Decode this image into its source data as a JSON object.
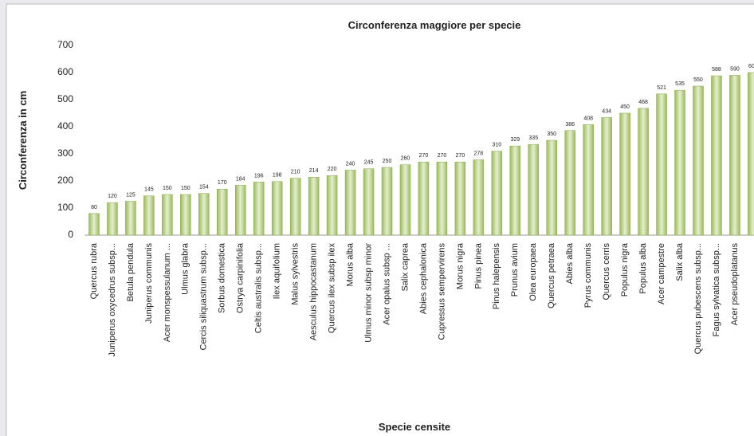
{
  "chart_data": {
    "type": "bar",
    "title": "Circonferenza maggiore per specie",
    "x_label": "Specie censite",
    "y_label": "Circonferenza in cm",
    "categories": [
      "Quercus rubra",
      "Juniperus oxycedrus subsp...",
      "Betula pendula",
      "Juniperus communis",
      "Acer monspessulanum ...",
      "Ulmus glabra",
      "Cercis siliquastrum subsp...",
      "Sorbus domestica",
      "Ostrya carpinifolia",
      "Celtis australis subsp...",
      "Ilex aquifolium",
      "Malus sylvestris",
      "Aesculus hippocastanum",
      "Quercus ilex subsp ilex",
      "Morus alba",
      "Ulmus minor subsp minor",
      "Acer opalus subsp ...",
      "Salix caprea",
      "Abies cephalonica",
      "Cupressus sempervirens",
      "Morus nigra",
      "Pinus pinea",
      "Pinus halepensis",
      "Prunus avium",
      "Olea europaea",
      "Quercus petraea",
      "Abies alba",
      "Pyrus communis",
      "Quercus cerris",
      "Populus nigra",
      "Populus alba",
      "Acer campestre",
      "Salix alba",
      "Quercus pubescens subsp...",
      "Fagus sylvatica subsp...",
      "Acer pseudoplatanus",
      null
    ],
    "values": [
      80,
      120,
      125,
      145,
      150,
      150,
      154,
      170,
      184,
      196,
      198,
      210,
      214,
      220,
      240,
      245,
      250,
      260,
      270,
      270,
      270,
      278,
      310,
      329,
      335,
      350,
      386,
      408,
      434,
      450,
      468,
      521,
      535,
      550,
      588,
      590,
      600
    ],
    "color": "#9bbb59",
    "ylim": [
      0,
      700
    ],
    "yticks": [
      0,
      100,
      200,
      300,
      400,
      500,
      600,
      700
    ],
    "grid": false
  }
}
